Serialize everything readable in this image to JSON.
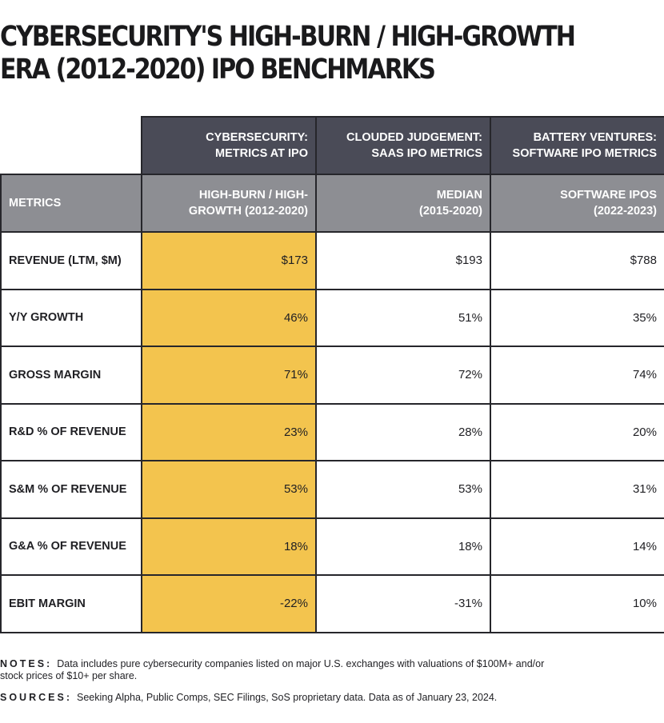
{
  "title": {
    "line1": "CYBERSECURITY'S HIGH-BURN / HIGH-GROWTH",
    "line2": "ERA (2012-2020) IPO BENCHMARKS"
  },
  "table": {
    "group_headers": [
      {
        "line1": "CYBERSECURITY:",
        "line2": "METRICS AT IPO"
      },
      {
        "line1": "CLOUDED JUDGEMENT:",
        "line2": "SAAS IPO METRICS"
      },
      {
        "line1": "BATTERY VENTURES:",
        "line2": "SOFTWARE IPO METRICS"
      }
    ],
    "metrics_header": "METRICS",
    "sub_headers": [
      {
        "line1": "HIGH-BURN / HIGH-",
        "line2": "GROWTH (2012-2020)"
      },
      {
        "line1": "MEDIAN",
        "line2": "(2015-2020)"
      },
      {
        "line1": "SOFTWARE IPOS",
        "line2": "(2022-2023)"
      }
    ],
    "rows": [
      {
        "metric": "REVENUE (LTM, $M)",
        "values": [
          "$173",
          "$193",
          "$788"
        ]
      },
      {
        "metric": "Y/Y GROWTH",
        "values": [
          "46%",
          "51%",
          "35%"
        ]
      },
      {
        "metric": "GROSS MARGIN",
        "values": [
          "71%",
          "72%",
          "74%"
        ]
      },
      {
        "metric": "R&D % OF REVENUE",
        "values": [
          "23%",
          "28%",
          "20%"
        ]
      },
      {
        "metric": "S&M % OF REVENUE",
        "values": [
          "53%",
          "53%",
          "31%"
        ]
      },
      {
        "metric": "G&A % OF REVENUE",
        "values": [
          "18%",
          "18%",
          "14%"
        ]
      },
      {
        "metric": "EBIT MARGIN",
        "values": [
          "-22%",
          "-31%",
          "10%"
        ]
      }
    ]
  },
  "notes": {
    "label": "NOTES:",
    "text": "Data includes pure cybersecurity companies listed on major U.S. exchanges with valuations of $100M+ and/or stock prices of $10+ per share."
  },
  "sources": {
    "label": "SOURCES:",
    "text": "Seeking Alpha, Public Comps, SEC Filings, SoS proprietary data. Data as of January 23, 2024."
  },
  "colors": {
    "header_dark": "#4a4b57",
    "header_gray": "#8d8e93",
    "highlight": "#f3c44e",
    "border": "#26262b"
  }
}
